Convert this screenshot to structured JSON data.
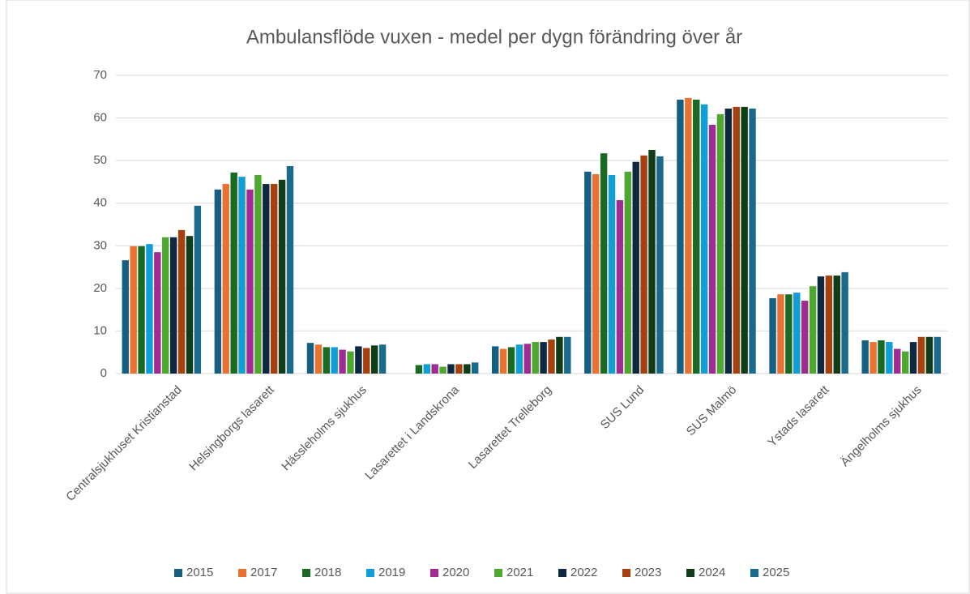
{
  "chart_data": {
    "type": "bar",
    "title": "Ambulansflöde vuxen -  medel per dygn förändring över år",
    "categories": [
      "Centralsjukhuset Kristianstad",
      "Helsingborgs lasarett",
      "Hässleholms sjukhus",
      "Lasarettet i Landskrona",
      "Lasarettet Trelleborg",
      "SUS Lund",
      "SUS Malmö",
      "Ystads lasarett",
      "Ängelholms sjukhus"
    ],
    "series": [
      {
        "name": "2015",
        "color": "#156082",
        "values": [
          26.6,
          43.2,
          7.2,
          null,
          6.4,
          47.4,
          64.3,
          17.7,
          7.8
        ]
      },
      {
        "name": "2017",
        "color": "#e97132",
        "values": [
          29.9,
          44.5,
          6.8,
          null,
          5.8,
          46.8,
          64.7,
          18.6,
          7.4
        ]
      },
      {
        "name": "2018",
        "color": "#196b24",
        "values": [
          29.9,
          47.2,
          6.2,
          2.0,
          6.2,
          51.7,
          64.3,
          18.6,
          7.8
        ]
      },
      {
        "name": "2019",
        "color": "#0f9ed5",
        "values": [
          30.4,
          46.2,
          6.2,
          2.2,
          6.8,
          46.6,
          63.2,
          19.0,
          7.4
        ]
      },
      {
        "name": "2020",
        "color": "#a02b93",
        "values": [
          28.5,
          43.2,
          5.6,
          2.2,
          7.0,
          40.7,
          58.4,
          17.1,
          5.8
        ]
      },
      {
        "name": "2021",
        "color": "#4ea72e",
        "values": [
          32.0,
          46.6,
          5.2,
          1.6,
          7.4,
          47.4,
          60.9,
          20.5,
          5.2
        ]
      },
      {
        "name": "2022",
        "color": "#0e2841",
        "values": [
          32.0,
          44.5,
          6.4,
          2.2,
          7.4,
          49.7,
          62.2,
          22.8,
          7.4
        ]
      },
      {
        "name": "2023",
        "color": "#a5400f",
        "values": [
          33.7,
          44.5,
          6.0,
          2.2,
          8.0,
          51.2,
          62.6,
          23.0,
          8.6
        ]
      },
      {
        "name": "2024",
        "color": "#0f3d17",
        "values": [
          32.3,
          45.5,
          6.6,
          2.2,
          8.6,
          52.5,
          62.6,
          23.0,
          8.6
        ]
      },
      {
        "name": "2025",
        "color": "#1a6a8c",
        "values": [
          39.4,
          48.7,
          6.8,
          2.6,
          8.6,
          51.0,
          62.2,
          23.8,
          8.6
        ]
      }
    ],
    "ylim": [
      0,
      70
    ],
    "yticks": [
      0,
      10,
      20,
      30,
      40,
      50,
      60,
      70
    ],
    "grid": true,
    "legend": "bottom"
  }
}
